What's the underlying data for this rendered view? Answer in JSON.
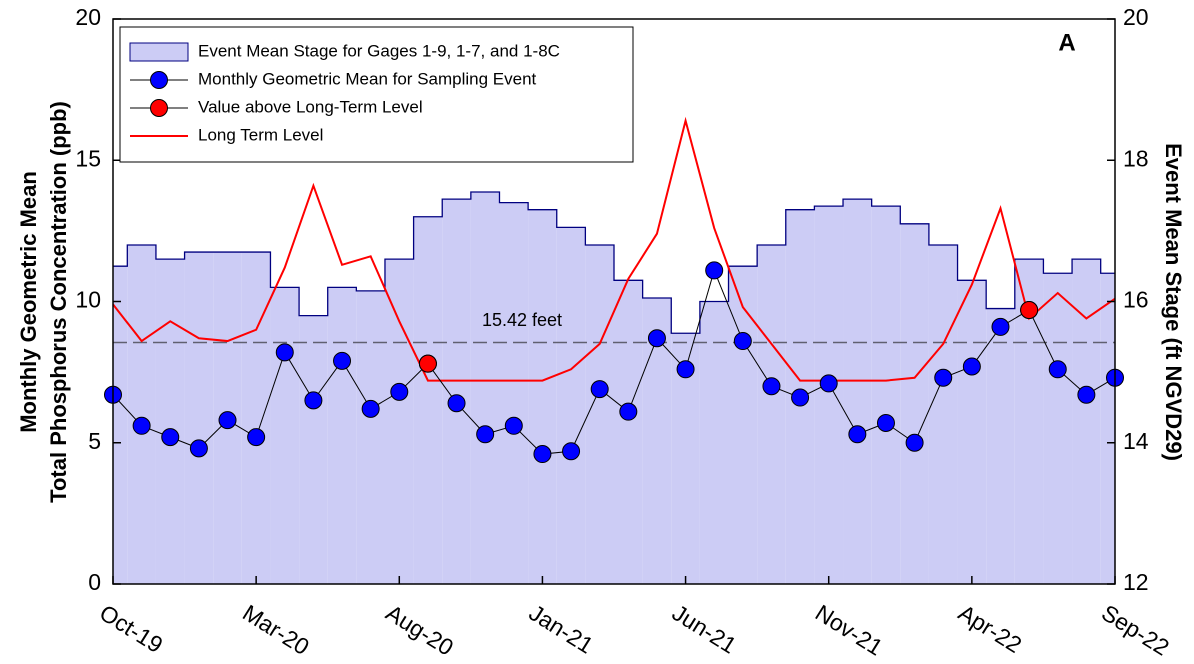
{
  "chart_data": {
    "type": "line",
    "annotation": "A",
    "ylabel": [
      "Monthly Geometric Mean",
      "Total Phosphorus Concentration (ppb)"
    ],
    "y2label": "Event Mean Stage (ft NGVD29)",
    "categories": [
      "Oct-19",
      null,
      null,
      null,
      null,
      "Mar-20",
      null,
      null,
      null,
      null,
      "Aug-20",
      null,
      null,
      null,
      null,
      "Jan-21",
      null,
      null,
      null,
      null,
      "Jun-21",
      null,
      null,
      null,
      null,
      "Nov-21",
      null,
      null,
      null,
      null,
      "Apr-22",
      null,
      null,
      null,
      null,
      "Sep-22"
    ],
    "ylim": [
      0,
      20
    ],
    "yticks": [
      0,
      5,
      10,
      15,
      20
    ],
    "y2lim": [
      12,
      20
    ],
    "y2ticks": [
      12,
      14,
      16,
      18,
      20
    ],
    "legend": "upper left",
    "reference_lines": [
      {
        "value": 15.42,
        "axis": "y2",
        "label": "15.42 feet",
        "color": "#606070"
      }
    ],
    "series": [
      {
        "name": "Event Mean Stage for Gages 1-9, 1-7, and 1-8C",
        "type": "step-area",
        "axis": "y2",
        "color": "#ccccf5",
        "edge_color": "#000080",
        "values": [
          16.5,
          16.8,
          16.6,
          16.7,
          16.7,
          16.7,
          16.2,
          15.8,
          16.2,
          16.15,
          16.6,
          17.2,
          17.45,
          17.55,
          17.4,
          17.3,
          17.05,
          16.8,
          16.3,
          16.05,
          15.55,
          16.0,
          16.5,
          16.8,
          17.3,
          17.35,
          17.45,
          17.35,
          17.1,
          16.8,
          16.3,
          15.9,
          16.6,
          16.4,
          16.6,
          16.4
        ]
      },
      {
        "name": "Monthly Geometric Mean for Sampling Event",
        "type": "line-marker",
        "color": "#0000ff",
        "line_color": "#000000",
        "values": [
          6.7,
          5.6,
          5.2,
          4.8,
          5.8,
          5.2,
          8.2,
          6.5,
          7.9,
          6.2,
          6.8,
          7.8,
          6.4,
          5.3,
          5.6,
          4.6,
          4.7,
          6.9,
          6.1,
          8.7,
          7.6,
          11.1,
          8.6,
          7.0,
          6.6,
          7.1,
          5.3,
          5.7,
          5.0,
          7.3,
          7.7,
          9.1,
          9.7,
          7.6,
          6.7,
          7.3
        ]
      },
      {
        "name": "Value above Long-Term Level",
        "type": "marker",
        "color": "#ff0000",
        "line_color": "#000000",
        "values": [
          null,
          null,
          null,
          null,
          null,
          null,
          null,
          null,
          null,
          null,
          null,
          7.8,
          null,
          null,
          null,
          null,
          null,
          null,
          null,
          null,
          null,
          null,
          null,
          null,
          null,
          null,
          null,
          null,
          null,
          null,
          null,
          null,
          9.7,
          null,
          null,
          null
        ]
      },
      {
        "name": "Long Term Level",
        "type": "line",
        "color": "#ff0000",
        "values": [
          9.9,
          8.6,
          9.3,
          8.7,
          8.6,
          9.0,
          11.2,
          14.1,
          11.3,
          11.6,
          9.3,
          7.2,
          7.2,
          7.2,
          7.2,
          7.2,
          7.6,
          8.5,
          10.8,
          12.4,
          16.4,
          12.6,
          9.8,
          8.5,
          7.2,
          7.2,
          7.2,
          7.2,
          7.3,
          8.5,
          10.6,
          13.3,
          9.4,
          10.3,
          9.4,
          10.1
        ]
      }
    ]
  }
}
